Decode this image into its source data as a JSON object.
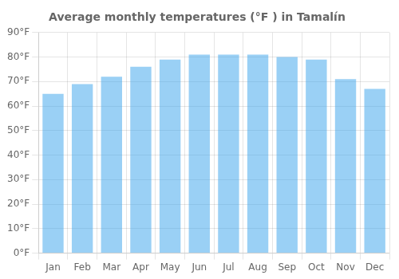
{
  "chart_data": {
    "type": "bar",
    "title": "Average monthly temperatures (°F ) in Tamalín",
    "categories": [
      "Jan",
      "Feb",
      "Mar",
      "Apr",
      "May",
      "Jun",
      "Jul",
      "Aug",
      "Sep",
      "Oct",
      "Nov",
      "Dec"
    ],
    "values": [
      65,
      69,
      72,
      76,
      79,
      81,
      81,
      81,
      80,
      79,
      71,
      67
    ],
    "ylim": [
      0,
      90
    ],
    "yticks": [
      {
        "value": 0,
        "label": "0°F"
      },
      {
        "value": 10,
        "label": "10°F"
      },
      {
        "value": 20,
        "label": "20°F"
      },
      {
        "value": 30,
        "label": "30°F"
      },
      {
        "value": 40,
        "label": "40°F"
      },
      {
        "value": 50,
        "label": "50°F"
      },
      {
        "value": 60,
        "label": "60°F"
      },
      {
        "value": 70,
        "label": "70°F"
      },
      {
        "value": 80,
        "label": "80°F"
      },
      {
        "value": 90,
        "label": "90°F"
      }
    ],
    "grid": true
  }
}
